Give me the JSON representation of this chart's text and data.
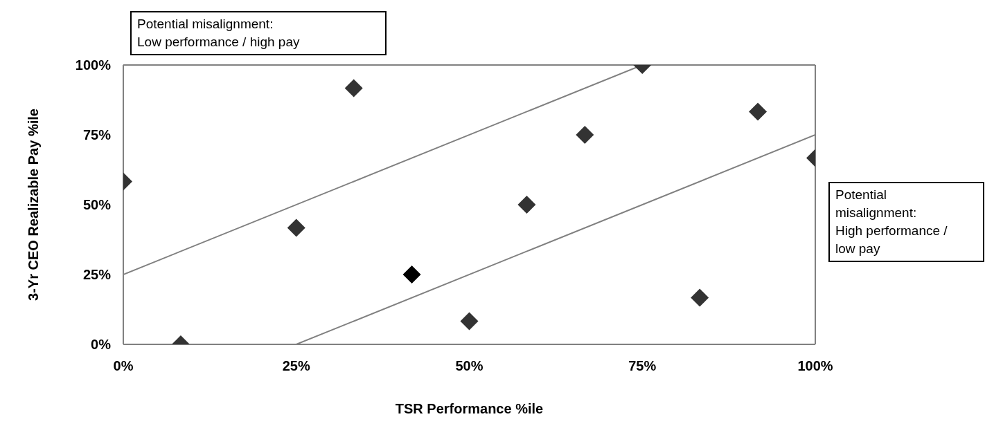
{
  "chart_data": {
    "type": "scatter",
    "xlabel": "TSR Performance %ile",
    "ylabel": "3-Yr CEO Realizable Pay  %ile",
    "xlim": [
      0,
      100
    ],
    "ylim": [
      0,
      100
    ],
    "xticks": [
      {
        "value": 0,
        "label": "0%"
      },
      {
        "value": 25,
        "label": "25%"
      },
      {
        "value": 50,
        "label": "50%"
      },
      {
        "value": 75,
        "label": "75%"
      },
      {
        "value": 100,
        "label": "100%"
      }
    ],
    "yticks": [
      {
        "value": 0,
        "label": "0%"
      },
      {
        "value": 25,
        "label": "25%"
      },
      {
        "value": 50,
        "label": "50%"
      },
      {
        "value": 75,
        "label": "75%"
      },
      {
        "value": 100,
        "label": "100%"
      }
    ],
    "grid": false,
    "series": [
      {
        "color": "#333333",
        "marker": "diamond",
        "x": [
          0,
          8.3,
          25,
          33.3,
          50,
          58.3,
          66.7,
          75,
          83.3,
          91.7,
          100
        ],
        "values": [
          58.3,
          0,
          41.7,
          91.7,
          8.3,
          50,
          75,
          100,
          16.7,
          83.3,
          66.7
        ]
      },
      {
        "color": "#000000",
        "marker": "diamond",
        "x": [
          41.7
        ],
        "values": [
          25
        ]
      },
      {
        "type": "line",
        "color": "#808080",
        "marker": "none",
        "x": [
          0,
          75
        ],
        "values": [
          25,
          100
        ]
      },
      {
        "type": "line",
        "color": "#808080",
        "marker": "none",
        "x": [
          25,
          100
        ],
        "values": [
          0,
          75
        ]
      }
    ],
    "annotations": [
      "Potential misalignment:\nLow performance / high pay",
      "Potential\nmisalignment:\nHigh performance /\nlow pay"
    ]
  }
}
